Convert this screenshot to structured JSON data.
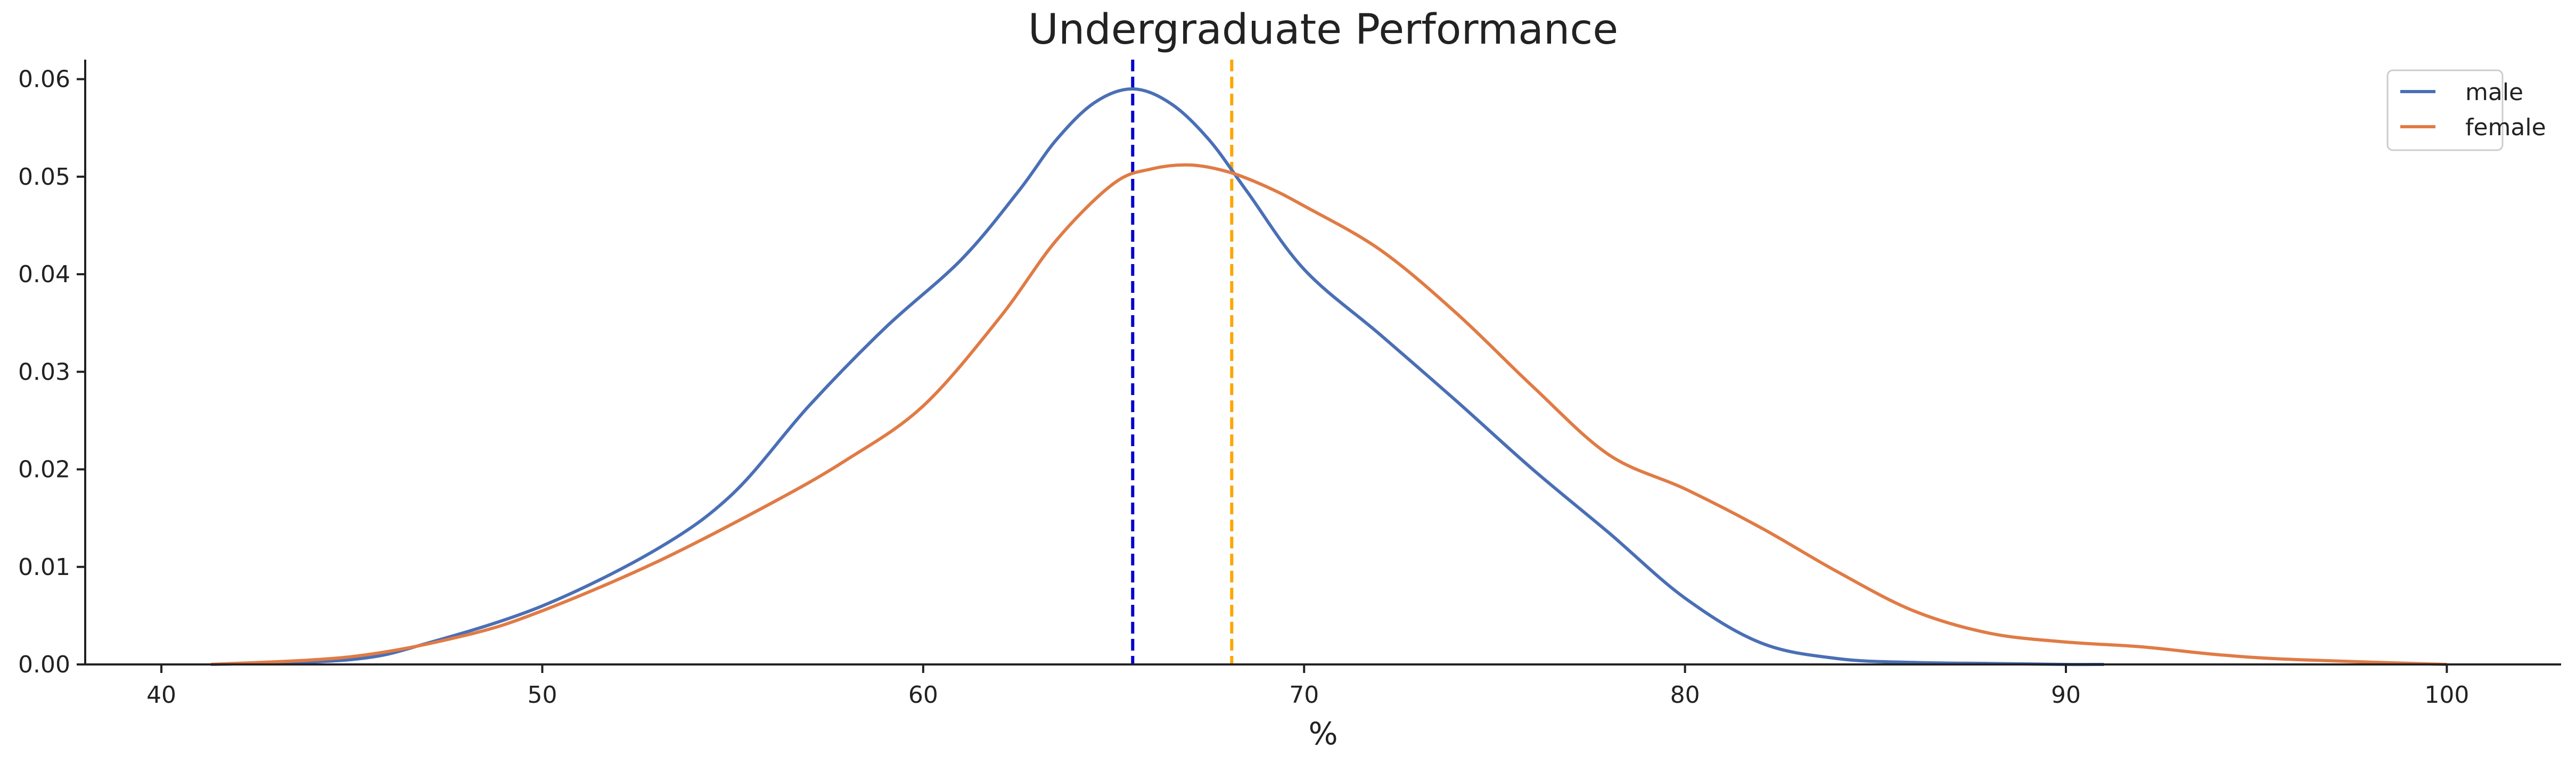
{
  "chart_data": {
    "type": "line",
    "title": "Undergraduate Performance",
    "xlabel": "%",
    "ylabel": "",
    "xlim": [
      38,
      103
    ],
    "ylim": [
      0,
      0.062
    ],
    "x_ticks": [
      "40",
      "50",
      "60",
      "70",
      "80",
      "90",
      "100"
    ],
    "y_ticks": [
      "0.00",
      "0.01",
      "0.02",
      "0.03",
      "0.04",
      "0.05",
      "0.06"
    ],
    "grid": false,
    "legend_position": "top-right",
    "series": [
      {
        "name": "male",
        "color": "#4a6fb5",
        "x": [
          41.3,
          45,
          47,
          50,
          53,
          55,
          57,
          59,
          61,
          62.5,
          63.5,
          64.5,
          65.5,
          66.5,
          67.5,
          68.5,
          70,
          72,
          74,
          76,
          78,
          80,
          82,
          84,
          86,
          88,
          90,
          91
        ],
        "y": [
          0,
          0.0005,
          0.0022,
          0.006,
          0.0118,
          0.0175,
          0.0265,
          0.0345,
          0.0415,
          0.0485,
          0.0538,
          0.0576,
          0.059,
          0.0575,
          0.0538,
          0.0485,
          0.0405,
          0.0338,
          0.027,
          0.02,
          0.0135,
          0.0068,
          0.0022,
          0.0006,
          0.0002,
          0.0001,
          0,
          0
        ]
      },
      {
        "name": "female",
        "color": "#e07b45",
        "x": [
          41.3,
          45,
          48,
          50,
          53,
          56,
          58,
          60,
          62,
          63.5,
          65,
          66,
          67,
          68,
          69,
          70,
          72,
          74,
          76,
          78,
          80,
          82,
          84,
          86,
          88,
          90,
          92,
          94,
          96,
          100
        ],
        "y": [
          0,
          0.0008,
          0.003,
          0.0055,
          0.0105,
          0.0165,
          0.021,
          0.0265,
          0.0355,
          0.0435,
          0.0493,
          0.0508,
          0.0512,
          0.0505,
          0.049,
          0.047,
          0.0425,
          0.036,
          0.0285,
          0.0215,
          0.018,
          0.014,
          0.0095,
          0.0055,
          0.0032,
          0.0023,
          0.0018,
          0.001,
          0.0005,
          0
        ]
      }
    ],
    "vlines": [
      {
        "x": 65.5,
        "color": "#0000cc",
        "style": "dashed"
      },
      {
        "x": 68.1,
        "color": "#ffa500",
        "style": "dashed"
      }
    ]
  }
}
